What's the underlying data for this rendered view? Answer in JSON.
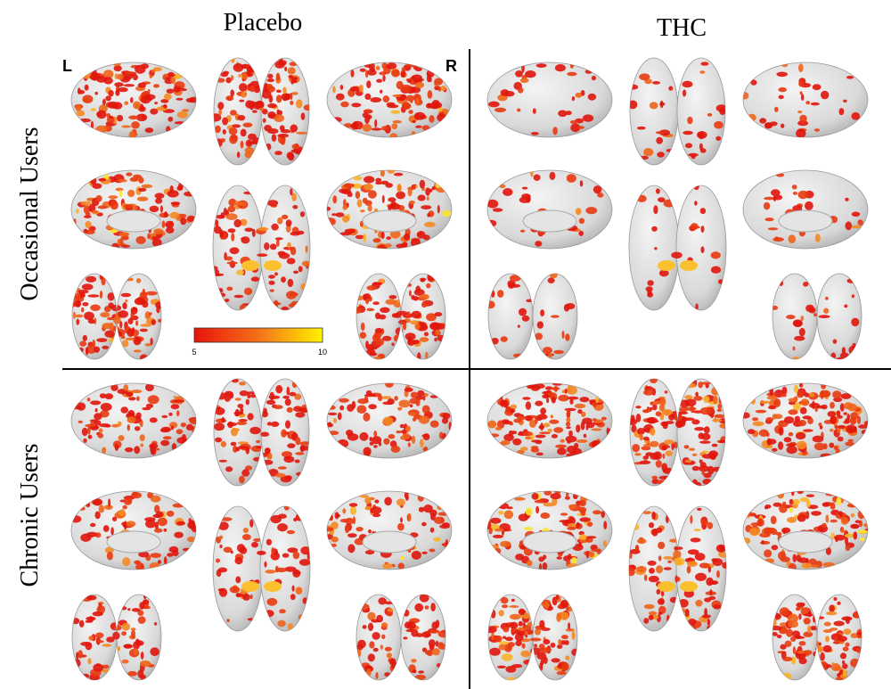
{
  "columns": [
    "Placebo",
    "THC"
  ],
  "rows": [
    "Occasional Users",
    "Chronic Users"
  ],
  "hemisphere_labels": {
    "left": "L",
    "right": "R"
  },
  "colorbar": {
    "min": 5,
    "max": 10
  }
}
